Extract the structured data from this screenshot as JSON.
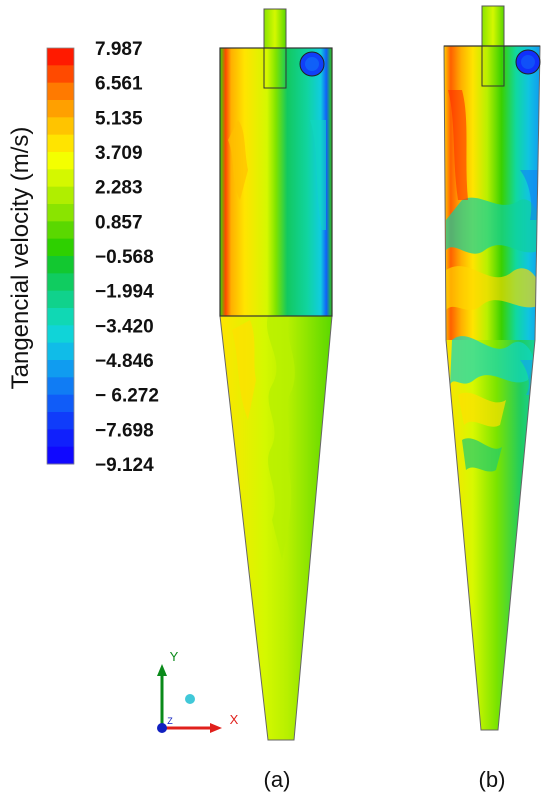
{
  "colorbar": {
    "title": "Tangencial velocity (m/s)",
    "ticks": [
      "7.987",
      "6.561",
      "5.135",
      "3.709",
      "2.283",
      "0.857",
      "−0.568",
      "−1.994",
      "−3.420",
      "−4.846",
      "− 6.272",
      "−7.698",
      "−9.124"
    ],
    "colors": [
      "#ff1a00",
      "#ff4a00",
      "#ff7a00",
      "#ffa000",
      "#ffc400",
      "#ffe400",
      "#f4ff00",
      "#d4f800",
      "#b0ee00",
      "#8ae400",
      "#5ad800",
      "#2ed000",
      "#12c830",
      "#10cc60",
      "#10d28c",
      "#10d8b4",
      "#10d4d8",
      "#10bce8",
      "#109cf0",
      "#107cf4",
      "#105cf8",
      "#103cfa",
      "#1020fc",
      "#1008ff"
    ],
    "range": [
      -9.124,
      7.987
    ]
  },
  "axes": {
    "x": "X",
    "y": "Y",
    "z": "Z"
  },
  "panels": [
    {
      "label": "(a)"
    },
    {
      "label": "(b)"
    }
  ]
}
